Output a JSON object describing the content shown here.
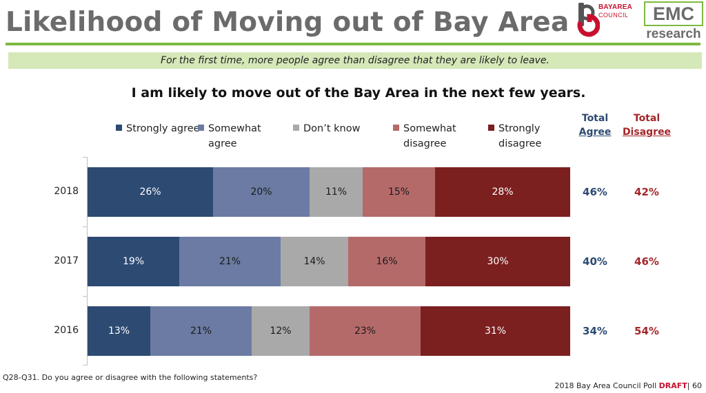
{
  "slide": {
    "title": "Likelihood of Moving out of Bay Area",
    "subtitle": "For the first time, more people agree than disagree that they are likely to leave.",
    "footnote": "Q28-Q31. Do you agree or disagree with the following statements?",
    "footer_source": "2018 Bay Area Council Poll",
    "footer_draft": "DRAFT",
    "footer_page": "| 60"
  },
  "logos": {
    "bac_line1": "BAYAREA",
    "bac_line2": "COUNCIL",
    "emc_main": "EMC",
    "emc_sub": "research"
  },
  "colors": {
    "strongly_agree": "#2d4a72",
    "somewhat_agree": "#6b7ba3",
    "dont_know": "#a9a9a9",
    "somewhat_disagree": "#b56a6a",
    "strongly_disagree": "#7b1f1f",
    "total_agree_text": "#2d4a72",
    "total_disagree_text": "#a3262a",
    "title_rule": "#7cba3f",
    "subtitle_band": "#d4e8b8"
  },
  "chart_data": {
    "type": "bar",
    "orientation": "horizontal",
    "stacked": true,
    "title": "I am likely to move out of the Bay Area in the next few years.",
    "categories": [
      "2018",
      "2017",
      "2016"
    ],
    "series": [
      {
        "name": "Strongly agree",
        "values": [
          26,
          19,
          13
        ]
      },
      {
        "name": "Somewhat agree",
        "values": [
          20,
          21,
          21
        ]
      },
      {
        "name": "Don’t know",
        "values": [
          11,
          14,
          12
        ]
      },
      {
        "name": "Somewhat disagree",
        "values": [
          15,
          16,
          23
        ]
      },
      {
        "name": "Strongly disagree",
        "values": [
          28,
          30,
          31
        ]
      }
    ],
    "value_suffix": "%",
    "legend_position": "top",
    "totals": {
      "agree_header_line1": "Total",
      "agree_header_line2": "Agree",
      "disagree_header_line1": "Total",
      "disagree_header_line2": "Disagree",
      "agree": [
        "46%",
        "40%",
        "34%"
      ],
      "disagree": [
        "42%",
        "46%",
        "54%"
      ]
    }
  }
}
